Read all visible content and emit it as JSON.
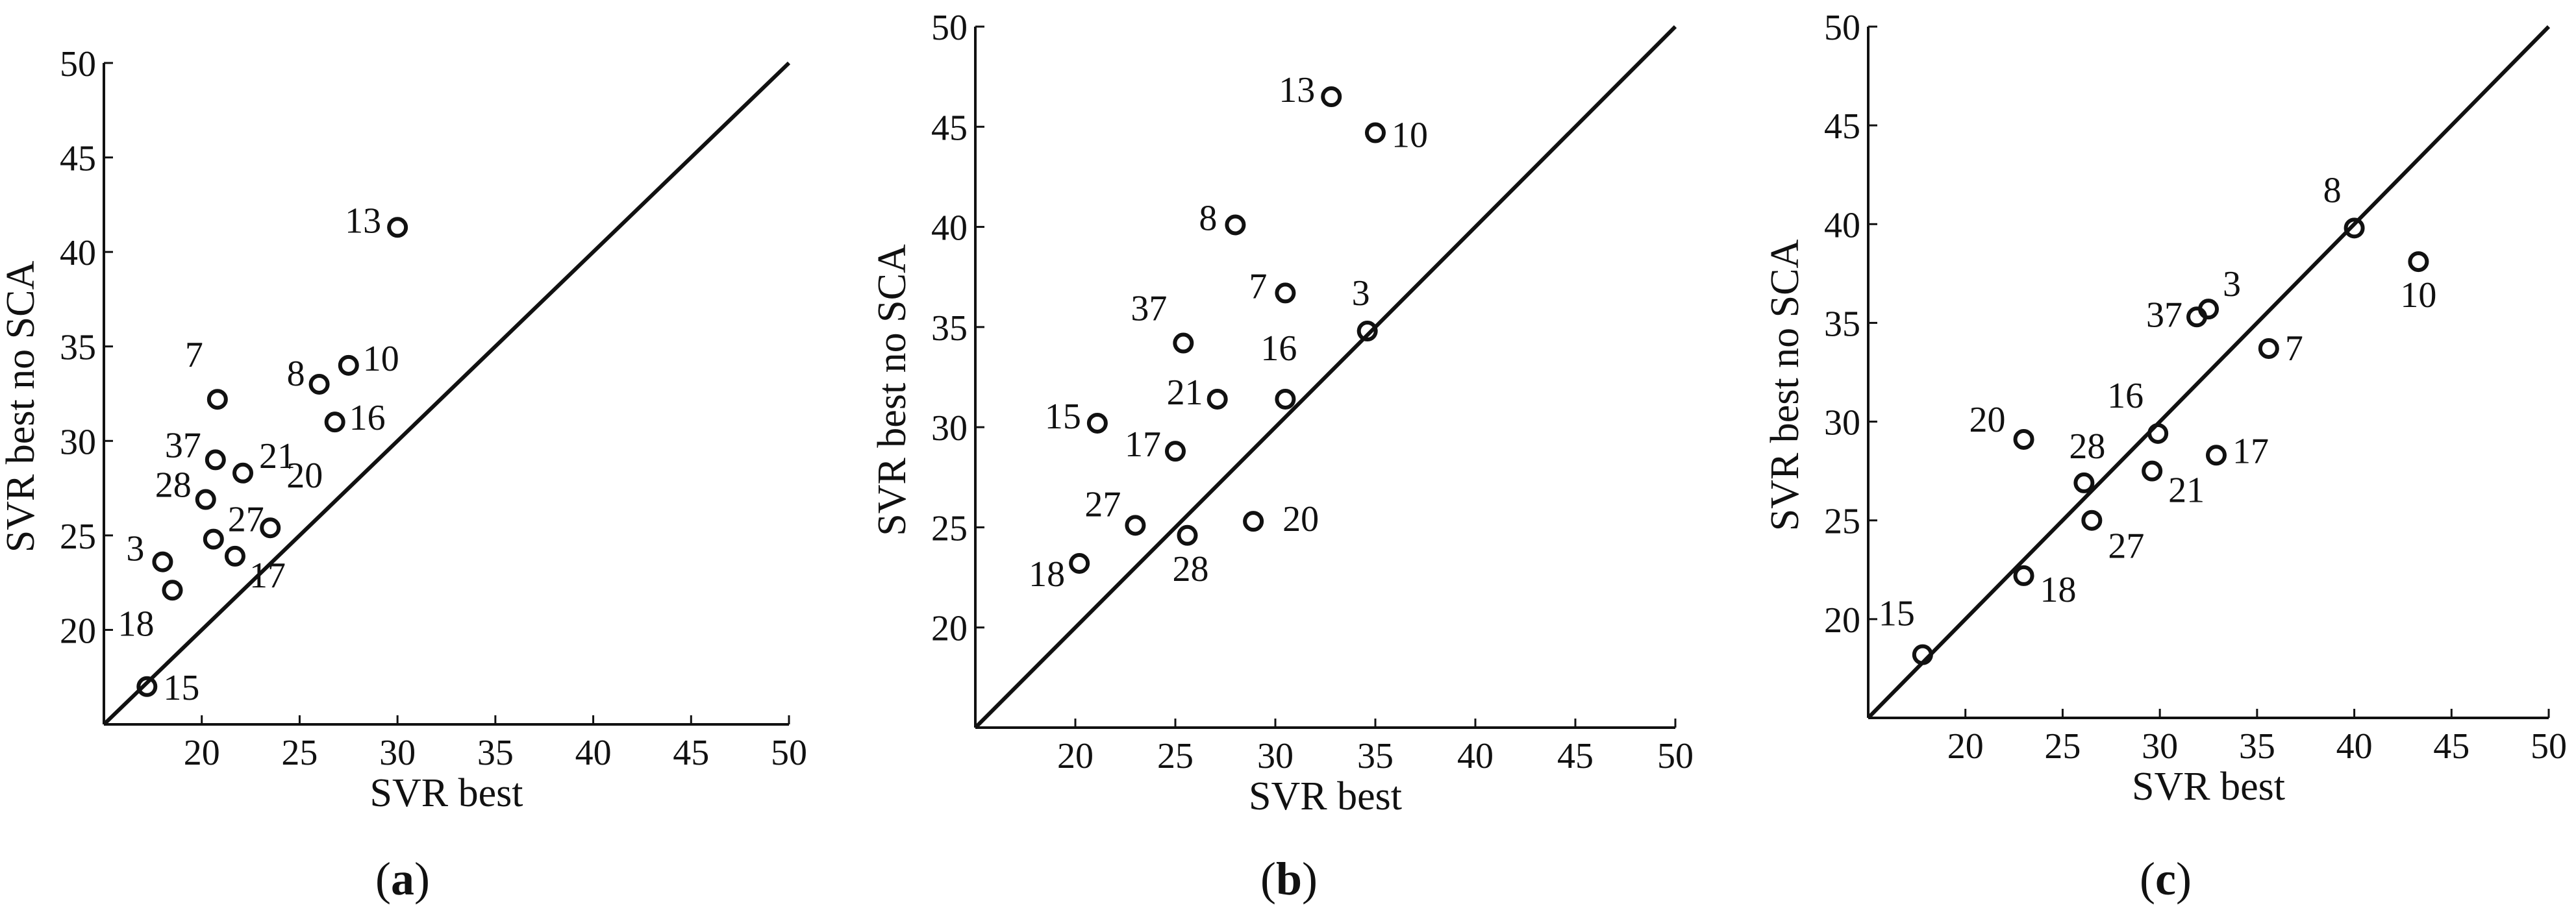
{
  "chart_data": [
    {
      "type": "scatter",
      "panel_label": "a",
      "xlabel": "SVR best",
      "ylabel": "SVR best no SCA",
      "xlim": [
        15,
        50
      ],
      "ylim": [
        15,
        50
      ],
      "xticks": [
        20,
        25,
        30,
        35,
        40,
        45,
        50
      ],
      "yticks": [
        20,
        25,
        30,
        35,
        40,
        45,
        50
      ],
      "grid": false,
      "reference_line": "y = x",
      "points": [
        {
          "label": "13",
          "x": 30.0,
          "y": 41.3
        },
        {
          "label": "10",
          "x": 27.5,
          "y": 34.0
        },
        {
          "label": "8",
          "x": 26.0,
          "y": 33.0
        },
        {
          "label": "7",
          "x": 20.8,
          "y": 32.2
        },
        {
          "label": "16",
          "x": 26.8,
          "y": 31.0
        },
        {
          "label": "37",
          "x": 20.7,
          "y": 29.0
        },
        {
          "label": "21",
          "x": 22.1,
          "y": 28.3
        },
        {
          "label": "28",
          "x": 20.2,
          "y": 26.9
        },
        {
          "label": "20",
          "x": 23.5,
          "y": 25.4
        },
        {
          "label": "27",
          "x": 20.6,
          "y": 24.8
        },
        {
          "label": "3",
          "x": 18.0,
          "y": 23.6
        },
        {
          "label": "17",
          "x": 21.7,
          "y": 23.9
        },
        {
          "label": "18",
          "x": 18.5,
          "y": 22.1
        },
        {
          "label": "15",
          "x": 17.2,
          "y": 17.0
        }
      ]
    },
    {
      "type": "scatter",
      "panel_label": "b",
      "xlabel": "SVR best",
      "ylabel": "SVR best no SCA",
      "xlim": [
        15,
        50
      ],
      "ylim": [
        15,
        50
      ],
      "xticks": [
        20,
        25,
        30,
        35,
        40,
        45,
        50
      ],
      "yticks": [
        20,
        25,
        30,
        35,
        40,
        45,
        50
      ],
      "grid": false,
      "reference_line": "y = x",
      "points": [
        {
          "label": "13",
          "x": 32.8,
          "y": 46.5
        },
        {
          "label": "10",
          "x": 35.0,
          "y": 44.7
        },
        {
          "label": "8",
          "x": 28.0,
          "y": 40.1
        },
        {
          "label": "7",
          "x": 30.5,
          "y": 36.7
        },
        {
          "label": "3",
          "x": 34.6,
          "y": 34.8
        },
        {
          "label": "37",
          "x": 25.4,
          "y": 34.2
        },
        {
          "label": "16",
          "x": 30.5,
          "y": 31.4
        },
        {
          "label": "21",
          "x": 27.1,
          "y": 31.4
        },
        {
          "label": "15",
          "x": 21.1,
          "y": 30.2
        },
        {
          "label": "17",
          "x": 25.0,
          "y": 28.8
        },
        {
          "label": "20",
          "x": 28.9,
          "y": 25.3
        },
        {
          "label": "27",
          "x": 23.0,
          "y": 25.1
        },
        {
          "label": "28",
          "x": 25.6,
          "y": 24.6
        },
        {
          "label": "18",
          "x": 20.2,
          "y": 23.2
        }
      ]
    },
    {
      "type": "scatter",
      "panel_label": "c",
      "xlabel": "SVR best",
      "ylabel": "SVR best no SCA",
      "xlim": [
        15,
        50
      ],
      "ylim": [
        15,
        50
      ],
      "xticks": [
        20,
        25,
        30,
        35,
        40,
        45,
        50
      ],
      "yticks": [
        20,
        25,
        30,
        35,
        40,
        45,
        50
      ],
      "grid": false,
      "reference_line": "y = x",
      "points": [
        {
          "label": "8",
          "x": 40.0,
          "y": 39.8
        },
        {
          "label": "10",
          "x": 43.3,
          "y": 38.1
        },
        {
          "label": "3",
          "x": 32.5,
          "y": 35.7
        },
        {
          "label": "37",
          "x": 31.9,
          "y": 35.3
        },
        {
          "label": "7",
          "x": 35.6,
          "y": 33.7
        },
        {
          "label": "16",
          "x": 29.9,
          "y": 29.4
        },
        {
          "label": "20",
          "x": 23.0,
          "y": 29.1
        },
        {
          "label": "17",
          "x": 32.9,
          "y": 28.3
        },
        {
          "label": "21",
          "x": 29.6,
          "y": 27.5
        },
        {
          "label": "28",
          "x": 26.1,
          "y": 26.9
        },
        {
          "label": "27",
          "x": 26.5,
          "y": 25.0
        },
        {
          "label": "18",
          "x": 23.0,
          "y": 22.2
        },
        {
          "label": "15",
          "x": 17.8,
          "y": 18.2
        }
      ]
    }
  ]
}
